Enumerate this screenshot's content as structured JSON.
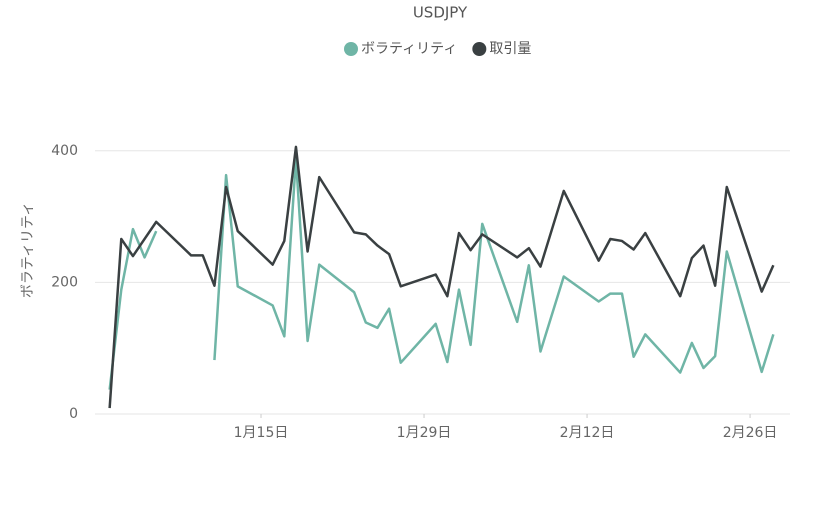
{
  "chart_data": {
    "type": "line",
    "title": "USDJPY",
    "ylabel": "ボラティリティ",
    "x": [
      2,
      3,
      4,
      5,
      6,
      9,
      10,
      11,
      12,
      13,
      16,
      17,
      18,
      19,
      20,
      23,
      24,
      25,
      26,
      27,
      30,
      31,
      32,
      33,
      34,
      37,
      38,
      39,
      41,
      44,
      45,
      46,
      47,
      48,
      51,
      52,
      53,
      54,
      55,
      58,
      59
    ],
    "series": [
      {
        "name": "ボラティリティ",
        "color": "#6fb5a6",
        "values": [
          37,
          189,
          281,
          238,
          278,
          null,
          null,
          82,
          363,
          194,
          165,
          118,
          388,
          111,
          227,
          185,
          139,
          131,
          160,
          78,
          137,
          79,
          189,
          105,
          289,
          140,
          226,
          95,
          209,
          171,
          183,
          183,
          87,
          121,
          63,
          108,
          70,
          88,
          247,
          64,
          121
        ]
      },
      {
        "name": "取引量",
        "color": "#3a4042",
        "values": [
          9,
          266,
          240,
          266,
          292,
          241,
          241,
          195,
          345,
          278,
          227,
          263,
          406,
          247,
          360,
          276,
          273,
          256,
          243,
          194,
          212,
          179,
          275,
          249,
          273,
          238,
          252,
          224,
          339,
          233,
          266,
          263,
          250,
          275,
          179,
          237,
          256,
          195,
          345,
          186,
          226
        ]
      }
    ],
    "xlim": [
      1,
      60
    ],
    "xticks": [
      {
        "value": 15,
        "label": "1月15日"
      },
      {
        "value": 29,
        "label": "1月29日"
      },
      {
        "value": 43,
        "label": "2月12日"
      },
      {
        "value": 57,
        "label": "2月26日"
      }
    ],
    "ylim": [
      0,
      500
    ],
    "yticks": [
      0,
      200,
      400
    ],
    "grid": true
  }
}
